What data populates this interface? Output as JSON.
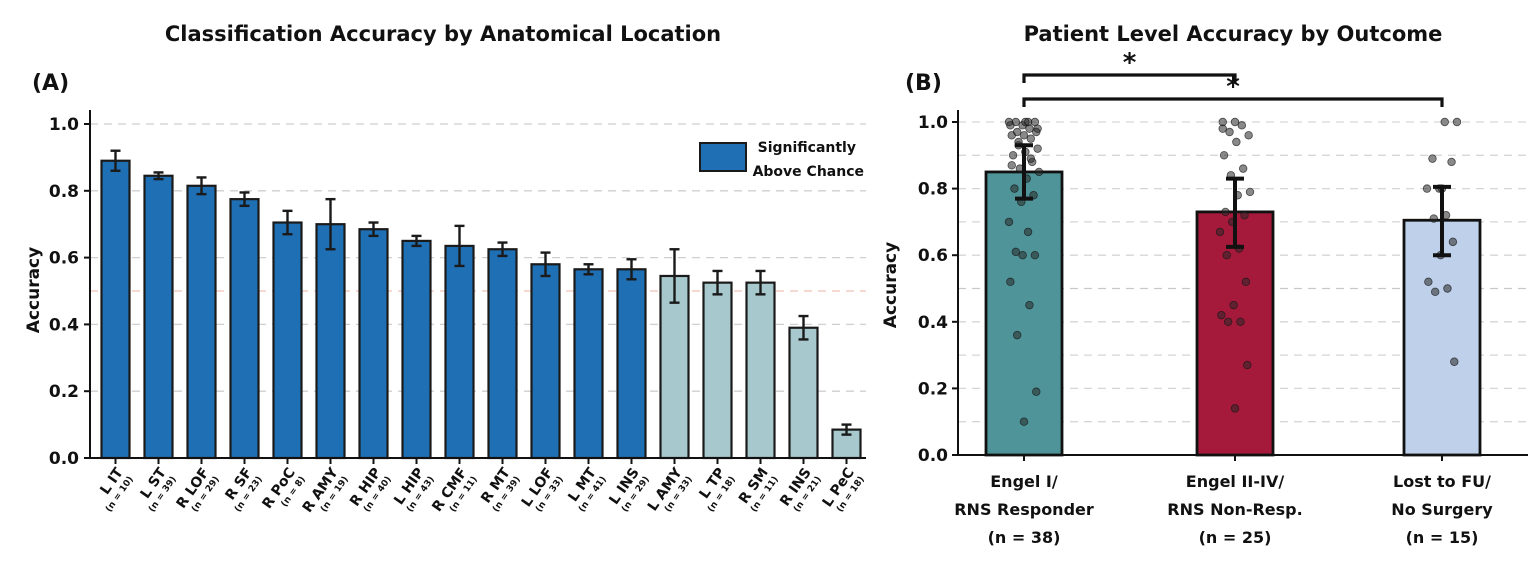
{
  "chart_data": [
    {
      "type": "bar",
      "panel_label": "(A)",
      "title": "Classification Accuracy by Anatomical Location",
      "ylabel": "Accuracy",
      "ylim": [
        0,
        1.0
      ],
      "yticks": [
        "0.0",
        "0.2",
        "0.4",
        "0.6",
        "0.8",
        "1.0"
      ],
      "grid": "horizontal dashed",
      "chance_line": 0.5,
      "legend": {
        "label": "Significantly Above Chance",
        "color": "#1f6fb5",
        "position": "top-right"
      },
      "colors": {
        "significant": "#1f6fb5",
        "not_significant": "#a7c8cc"
      },
      "categories": [
        {
          "name": "L IT",
          "n": "(n = 10)",
          "value": 0.89,
          "err": 0.03,
          "significant": true
        },
        {
          "name": "L ST",
          "n": "(n = 39)",
          "value": 0.845,
          "err": 0.01,
          "significant": true
        },
        {
          "name": "R LOF",
          "n": "(n = 29)",
          "value": 0.815,
          "err": 0.025,
          "significant": true
        },
        {
          "name": "R SF",
          "n": "(n = 23)",
          "value": 0.775,
          "err": 0.02,
          "significant": true
        },
        {
          "name": "R PoC",
          "n": "(n = 8)",
          "value": 0.705,
          "err": 0.035,
          "significant": true
        },
        {
          "name": "R AMY",
          "n": "(n = 19)",
          "value": 0.7,
          "err": 0.075,
          "significant": true
        },
        {
          "name": "R HIP",
          "n": "(n = 40)",
          "value": 0.685,
          "err": 0.02,
          "significant": true
        },
        {
          "name": "L HIP",
          "n": "(n = 43)",
          "value": 0.65,
          "err": 0.015,
          "significant": true
        },
        {
          "name": "R CMF",
          "n": "(n = 11)",
          "value": 0.635,
          "err": 0.06,
          "significant": true
        },
        {
          "name": "R MT",
          "n": "(n = 39)",
          "value": 0.625,
          "err": 0.02,
          "significant": true
        },
        {
          "name": "L LOF",
          "n": "(n = 33)",
          "value": 0.58,
          "err": 0.035,
          "significant": true
        },
        {
          "name": "L MT",
          "n": "(n = 41)",
          "value": 0.565,
          "err": 0.015,
          "significant": true
        },
        {
          "name": "L INS",
          "n": "(n = 29)",
          "value": 0.565,
          "err": 0.03,
          "significant": true
        },
        {
          "name": "L AMY",
          "n": "(n = 33)",
          "value": 0.545,
          "err": 0.08,
          "significant": false
        },
        {
          "name": "L TP",
          "n": "(n = 18)",
          "value": 0.525,
          "err": 0.035,
          "significant": false
        },
        {
          "name": "R SM",
          "n": "(n = 11)",
          "value": 0.525,
          "err": 0.035,
          "significant": false
        },
        {
          "name": "R INS",
          "n": "(n = 21)",
          "value": 0.39,
          "err": 0.035,
          "significant": false
        },
        {
          "name": "L PeC",
          "n": "(n = 18)",
          "value": 0.085,
          "err": 0.015,
          "significant": false
        }
      ]
    },
    {
      "type": "bar",
      "panel_label": "(B)",
      "title": "Patient Level Accuracy by Outcome",
      "ylabel": "Accuracy",
      "ylim": [
        0,
        1.0
      ],
      "yticks": [
        "0.0",
        "0.2",
        "0.4",
        "0.6",
        "0.8",
        "1.0"
      ],
      "grid": "horizontal dashed",
      "significance_marker": "*",
      "significance_pairs": [
        [
          0,
          1
        ],
        [
          0,
          2
        ]
      ],
      "categories": [
        {
          "lines": [
            "Engel I/",
            "RNS Responder",
            "(n = 38)"
          ],
          "value": 0.85,
          "err_low": 0.77,
          "err_high": 0.93,
          "color": "#4f9499",
          "points": [
            1.0,
            1.0,
            1.0,
            1.0,
            0.99,
            0.99,
            0.98,
            0.97,
            0.97,
            0.96,
            0.96,
            0.95,
            0.93,
            0.92,
            0.91,
            0.9,
            0.88,
            0.86,
            0.85,
            0.83,
            0.8,
            0.78,
            0.76,
            0.7,
            0.67,
            0.61,
            0.6,
            0.6,
            0.52,
            0.45,
            0.36,
            0.19,
            0.1,
            0.87,
            0.89,
            0.94,
            0.98,
            1.0
          ]
        },
        {
          "lines": [
            "Engel II-IV/",
            "RNS Non-Resp.",
            "(n = 25)"
          ],
          "value": 0.73,
          "err_low": 0.625,
          "err_high": 0.83,
          "color": "#a51a3b",
          "points": [
            1.0,
            1.0,
            0.99,
            0.97,
            0.96,
            0.94,
            0.9,
            0.86,
            0.84,
            0.79,
            0.78,
            0.73,
            0.72,
            0.7,
            0.67,
            0.62,
            0.6,
            0.52,
            0.45,
            0.42,
            0.4,
            0.4,
            0.27,
            0.14,
            0.98
          ]
        },
        {
          "lines": [
            "Lost to FU/",
            "No Surgery",
            "(n = 15)"
          ],
          "value": 0.705,
          "err_low": 0.6,
          "err_high": 0.805,
          "color": "#bed0ea",
          "points": [
            1.0,
            1.0,
            0.89,
            0.88,
            0.8,
            0.8,
            0.72,
            0.71,
            0.64,
            0.6,
            0.52,
            0.5,
            0.49,
            0.28,
            0.8
          ]
        }
      ]
    }
  ]
}
